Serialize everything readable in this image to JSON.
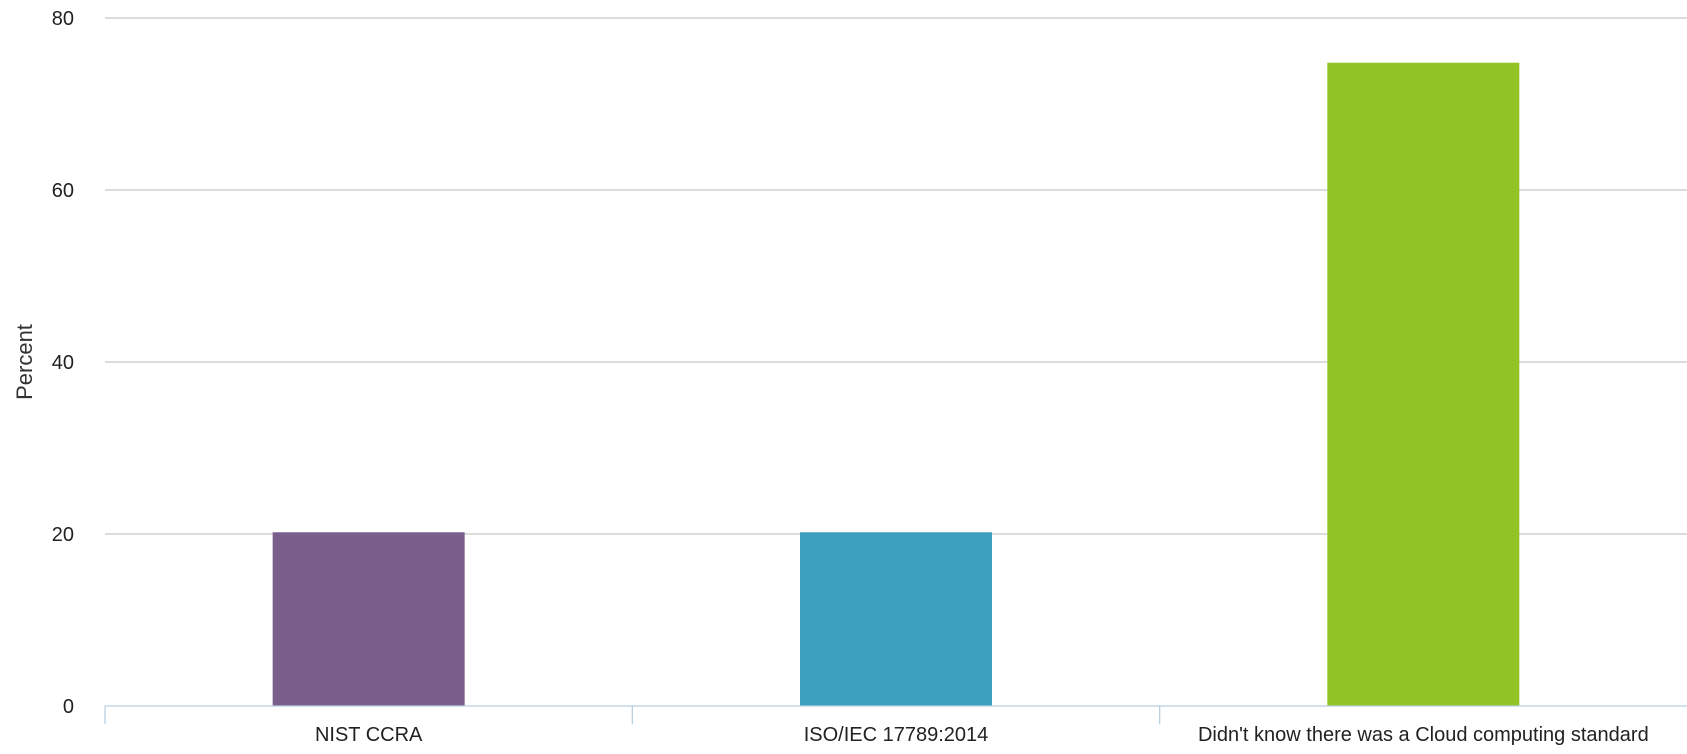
{
  "chart_data": {
    "type": "bar",
    "title": "",
    "xlabel": "",
    "ylabel": "Percent",
    "categories": [
      "NIST CCRA",
      "ISO/IEC 17789:2014",
      "Didn't know there was a Cloud computing standard"
    ],
    "values": [
      20.2,
      20.2,
      74.8
    ],
    "colors": [
      "#7a5e8c",
      "#3b9fbd",
      "#92c428"
    ],
    "ylim": [
      0,
      80
    ],
    "yticks": [
      0,
      20,
      40,
      60,
      80
    ],
    "grid": true,
    "legend": "none"
  }
}
